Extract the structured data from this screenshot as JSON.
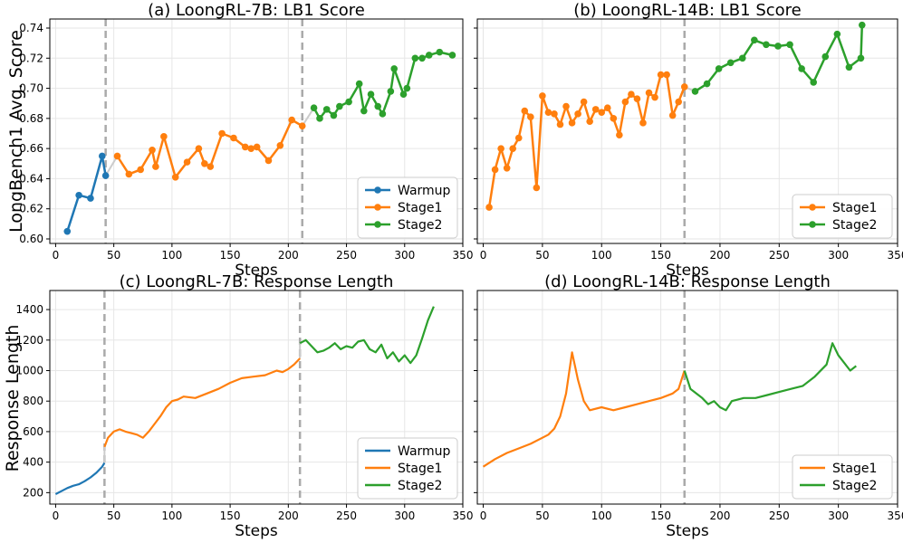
{
  "colors": {
    "warmup": "#1f77b4",
    "stage1": "#ff7f0e",
    "stage2": "#2ca02c",
    "divider": "#aaaaaa",
    "grid": "#e6e6e6"
  },
  "shared_y_labels": {
    "top": "LongBench1 Avg. Score",
    "bottom": "Response Length"
  },
  "chart_data": [
    {
      "type": "line",
      "title": "(a) LoongRL-7B: LB1 Score",
      "xlabel": "Steps",
      "ylabel": "LongBench1 Avg. Score",
      "xlim": [
        -5,
        350
      ],
      "ylim": [
        0.597,
        0.746
      ],
      "xticks": [
        0,
        50,
        100,
        150,
        200,
        250,
        300,
        350
      ],
      "yticks": [
        0.6,
        0.62,
        0.64,
        0.66,
        0.68,
        0.7,
        0.72,
        0.74
      ],
      "ytick_labels": [
        "0.60",
        "0.62",
        "0.64",
        "0.66",
        "0.68",
        "0.70",
        "0.72",
        "0.74"
      ],
      "grid": true,
      "markers": true,
      "legend_position": "lower-right",
      "vlines": [
        43,
        212
      ],
      "series": [
        {
          "name": "Warmup",
          "stage": "warmup",
          "x": [
            10,
            20,
            30,
            40,
            43
          ],
          "y": [
            0.605,
            0.629,
            0.627,
            0.655,
            0.642
          ]
        },
        {
          "name": "Stage1",
          "stage": "stage1",
          "x": [
            53,
            63,
            73,
            83,
            86,
            93,
            103,
            113,
            123,
            128,
            133,
            143,
            153,
            163,
            168,
            173,
            183,
            193,
            203,
            212
          ],
          "y": [
            0.655,
            0.643,
            0.646,
            0.659,
            0.648,
            0.668,
            0.641,
            0.651,
            0.66,
            0.65,
            0.648,
            0.67,
            0.667,
            0.661,
            0.66,
            0.661,
            0.652,
            0.662,
            0.679,
            0.675
          ]
        },
        {
          "name": "Stage2",
          "stage": "stage2",
          "x": [
            222,
            227,
            233,
            239,
            244,
            252,
            261,
            265,
            271,
            277,
            281,
            288,
            291,
            299,
            302,
            309,
            315,
            321,
            330,
            341
          ],
          "y": [
            0.687,
            0.68,
            0.686,
            0.682,
            0.688,
            0.691,
            0.703,
            0.685,
            0.696,
            0.688,
            0.683,
            0.698,
            0.713,
            0.696,
            0.7,
            0.72,
            0.72,
            0.722,
            0.724,
            0.722
          ]
        }
      ]
    },
    {
      "type": "line",
      "title": "(b) LoongRL-14B: LB1 Score",
      "xlabel": "Steps",
      "ylabel": "",
      "xlim": [
        -5,
        350
      ],
      "ylim": [
        0.597,
        0.746
      ],
      "xticks": [
        0,
        50,
        100,
        150,
        200,
        250,
        300,
        350
      ],
      "yticks": [
        0.6,
        0.62,
        0.64,
        0.66,
        0.68,
        0.7,
        0.72,
        0.74
      ],
      "ytick_labels": [],
      "grid": true,
      "markers": true,
      "legend_position": "lower-right",
      "vlines": [
        170
      ],
      "series": [
        {
          "name": "Stage1",
          "stage": "stage1",
          "x": [
            5,
            10,
            15,
            20,
            25,
            30,
            35,
            40,
            45,
            50,
            55,
            60,
            65,
            70,
            75,
            80,
            85,
            90,
            95,
            100,
            105,
            110,
            115,
            120,
            125,
            130,
            135,
            140,
            145,
            150,
            155,
            160,
            165,
            170
          ],
          "y": [
            0.621,
            0.646,
            0.66,
            0.647,
            0.66,
            0.667,
            0.685,
            0.681,
            0.634,
            0.695,
            0.684,
            0.683,
            0.676,
            0.688,
            0.677,
            0.683,
            0.691,
            0.678,
            0.686,
            0.684,
            0.687,
            0.68,
            0.669,
            0.691,
            0.696,
            0.693,
            0.677,
            0.697,
            0.694,
            0.709,
            0.709,
            0.682,
            0.691,
            0.701
          ]
        },
        {
          "name": "Stage2",
          "stage": "stage2",
          "x": [
            179,
            189,
            199,
            209,
            219,
            229,
            239,
            249,
            259,
            269,
            279,
            289,
            299,
            309,
            319,
            320
          ],
          "y": [
            0.698,
            0.703,
            0.713,
            0.717,
            0.72,
            0.732,
            0.729,
            0.728,
            0.729,
            0.713,
            0.704,
            0.721,
            0.736,
            0.714,
            0.72,
            0.742
          ]
        }
      ]
    },
    {
      "type": "line",
      "title": "(c) LoongRL-7B: Response Length",
      "xlabel": "Steps",
      "ylabel": "Response Length",
      "xlim": [
        -5,
        350
      ],
      "ylim": [
        125,
        1525
      ],
      "xticks": [
        0,
        50,
        100,
        150,
        200,
        250,
        300,
        350
      ],
      "yticks": [
        200,
        400,
        600,
        800,
        1000,
        1200,
        1400
      ],
      "ytick_labels": [
        "200",
        "400",
        "600",
        "800",
        "1000",
        "1200",
        "1400"
      ],
      "grid": true,
      "markers": false,
      "legend_position": "lower-right",
      "vlines": [
        42,
        210
      ],
      "series": [
        {
          "name": "Warmup",
          "stage": "warmup",
          "x": [
            0,
            5,
            10,
            15,
            20,
            25,
            30,
            35,
            40,
            42
          ],
          "y": [
            190,
            210,
            230,
            245,
            255,
            275,
            300,
            330,
            370,
            395
          ]
        },
        {
          "name": "Stage1",
          "stage": "stage1",
          "x": [
            42,
            45,
            50,
            55,
            60,
            65,
            70,
            75,
            80,
            85,
            90,
            95,
            100,
            105,
            110,
            120,
            130,
            140,
            150,
            160,
            170,
            180,
            190,
            195,
            200,
            205,
            210
          ],
          "y": [
            500,
            560,
            600,
            615,
            600,
            590,
            580,
            560,
            600,
            650,
            700,
            760,
            800,
            810,
            830,
            820,
            850,
            880,
            920,
            950,
            960,
            970,
            1000,
            990,
            1010,
            1040,
            1080
          ]
        },
        {
          "name": "Stage2",
          "stage": "stage2",
          "x": [
            210,
            215,
            220,
            225,
            230,
            235,
            240,
            245,
            250,
            255,
            260,
            265,
            270,
            275,
            280,
            285,
            290,
            295,
            300,
            305,
            310,
            315,
            320,
            325
          ],
          "y": [
            1180,
            1200,
            1160,
            1120,
            1130,
            1150,
            1180,
            1140,
            1160,
            1150,
            1190,
            1200,
            1140,
            1120,
            1170,
            1080,
            1120,
            1060,
            1100,
            1050,
            1100,
            1210,
            1330,
            1420
          ]
        }
      ]
    },
    {
      "type": "line",
      "title": "(d) LoongRL-14B: Response Length",
      "xlabel": "Steps",
      "ylabel": "",
      "xlim": [
        -5,
        350
      ],
      "ylim": [
        125,
        1525
      ],
      "xticks": [
        0,
        50,
        100,
        150,
        200,
        250,
        300,
        350
      ],
      "yticks": [
        200,
        400,
        600,
        800,
        1000,
        1200,
        1400
      ],
      "ytick_labels": [],
      "grid": true,
      "markers": false,
      "legend_position": "lower-right",
      "vlines": [
        170
      ],
      "series": [
        {
          "name": "Stage1",
          "stage": "stage1",
          "x": [
            0,
            10,
            20,
            30,
            40,
            50,
            55,
            60,
            65,
            70,
            75,
            80,
            85,
            90,
            100,
            110,
            120,
            130,
            140,
            150,
            160,
            165,
            170
          ],
          "y": [
            370,
            420,
            460,
            490,
            520,
            560,
            580,
            620,
            700,
            850,
            1120,
            940,
            800,
            740,
            760,
            740,
            760,
            780,
            800,
            820,
            850,
            880,
            1000
          ]
        },
        {
          "name": "Stage2",
          "stage": "stage2",
          "x": [
            170,
            175,
            180,
            185,
            190,
            195,
            200,
            205,
            210,
            220,
            230,
            240,
            250,
            260,
            270,
            280,
            290,
            295,
            300,
            305,
            310,
            315
          ],
          "y": [
            1000,
            880,
            850,
            820,
            780,
            800,
            760,
            740,
            800,
            820,
            820,
            840,
            860,
            880,
            900,
            960,
            1040,
            1180,
            1100,
            1050,
            1000,
            1030
          ]
        }
      ]
    }
  ]
}
